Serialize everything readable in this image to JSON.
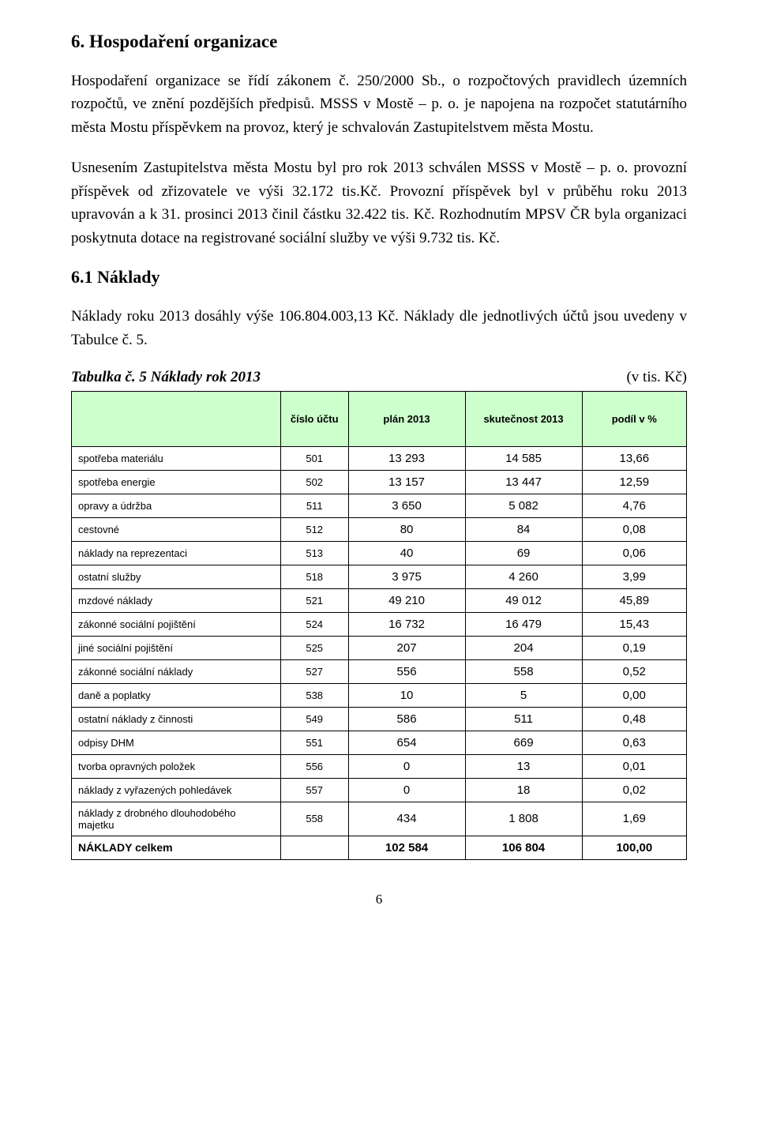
{
  "section": {
    "title": "6. Hospodaření organizace",
    "para1": "Hospodaření organizace se řídí zákonem č. 250/2000 Sb., o rozpočtových pravidlech územních rozpočtů, ve znění pozdějších předpisů. MSSS v Mostě – p. o. je napojena na rozpočet statutárního města Mostu příspěvkem na provoz, který je schvalován Zastupitelstvem města Mostu.",
    "para2": "Usnesením Zastupitelstva města Mostu byl pro rok 2013 schválen MSSS v Mostě – p. o. provozní příspěvek od zřizovatele ve výši 32.172 tis.Kč. Provozní příspěvek byl v průběhu roku 2013 upravován a k 31. prosinci 2013 činil částku 32.422 tis. Kč. Rozhodnutím MPSV ČR byla organizaci poskytnuta dotace na registrované sociální služby ve výši 9.732 tis. Kč."
  },
  "subsection": {
    "title": "6.1 Náklady",
    "para": "Náklady roku 2013 dosáhly výše 106.804.003,13 Kč. Náklady dle jednotlivých účtů jsou uvedeny v Tabulce č. 5."
  },
  "table": {
    "caption": "Tabulka č. 5 Náklady rok 2013",
    "unit": "(v tis. Kč)",
    "headers": {
      "blank": "",
      "acct": "číslo účtu",
      "plan": "plán 2013",
      "actual": "skutečnost 2013",
      "share": "podíl v %"
    },
    "rows": [
      {
        "label": "spotřeba materiálu",
        "acct": "501",
        "plan": "13 293",
        "actual": "14 585",
        "share": "13,66"
      },
      {
        "label": "spotřeba energie",
        "acct": "502",
        "plan": "13 157",
        "actual": "13 447",
        "share": "12,59"
      },
      {
        "label": "opravy a údržba",
        "acct": "511",
        "plan": "3 650",
        "actual": "5 082",
        "share": "4,76"
      },
      {
        "label": "cestovné",
        "acct": "512",
        "plan": "80",
        "actual": "84",
        "share": "0,08"
      },
      {
        "label": "náklady na reprezentaci",
        "acct": "513",
        "plan": "40",
        "actual": "69",
        "share": "0,06"
      },
      {
        "label": "ostatní služby",
        "acct": "518",
        "plan": "3 975",
        "actual": "4 260",
        "share": "3,99"
      },
      {
        "label": "mzdové náklady",
        "acct": "521",
        "plan": "49 210",
        "actual": "49 012",
        "share": "45,89"
      },
      {
        "label": "zákonné sociální pojištění",
        "acct": "524",
        "plan": "16 732",
        "actual": "16 479",
        "share": "15,43"
      },
      {
        "label": "jiné sociální pojištění",
        "acct": "525",
        "plan": "207",
        "actual": "204",
        "share": "0,19"
      },
      {
        "label": "zákonné sociální náklady",
        "acct": "527",
        "plan": "556",
        "actual": "558",
        "share": "0,52"
      },
      {
        "label": "daně a poplatky",
        "acct": "538",
        "plan": "10",
        "actual": "5",
        "share": "0,00"
      },
      {
        "label": "ostatní náklady z činnosti",
        "acct": "549",
        "plan": "586",
        "actual": "511",
        "share": "0,48"
      },
      {
        "label": "odpisy DHM",
        "acct": "551",
        "plan": "654",
        "actual": "669",
        "share": "0,63"
      },
      {
        "label": "tvorba opravných položek",
        "acct": "556",
        "plan": "0",
        "actual": "13",
        "share": "0,01"
      },
      {
        "label": "náklady z vyřazených pohledávek",
        "acct": "557",
        "plan": "0",
        "actual": "18",
        "share": "0,02"
      },
      {
        "label": "náklady z drobného dlouhodobého majetku",
        "acct": "558",
        "plan": "434",
        "actual": "1 808",
        "share": "1,69"
      }
    ],
    "total": {
      "label": "NÁKLADY celkem",
      "acct": "",
      "plan": "102 584",
      "actual": "106 804",
      "share": "100,00"
    }
  },
  "pageNumber": "6"
}
